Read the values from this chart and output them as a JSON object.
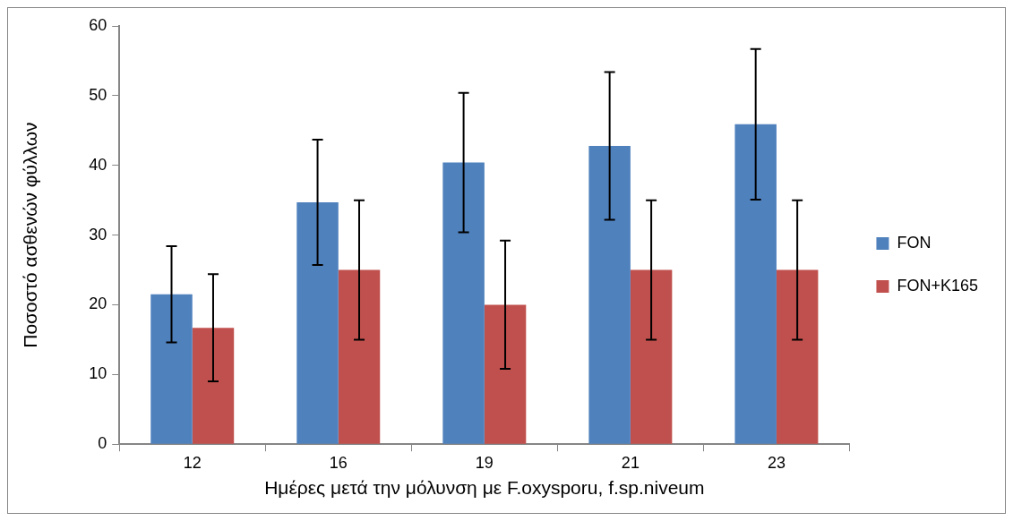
{
  "chart_data": {
    "type": "bar",
    "xlabel": "Ημέρες μετά την μόλυνση με F.oxysporu, f.sp.niveum",
    "ylabel": "Ποσοστό ασθενών φύλλων",
    "categories": [
      "12",
      "16",
      "19",
      "21",
      "23"
    ],
    "series": [
      {
        "name": "FON",
        "color": "#4f81bd",
        "values": [
          21.5,
          34.7,
          40.4,
          42.8,
          45.9
        ],
        "errors": [
          6.9,
          9.0,
          10.0,
          10.6,
          10.8
        ]
      },
      {
        "name": "FON+K165",
        "color": "#c0504d",
        "values": [
          16.7,
          25,
          20,
          25,
          25
        ],
        "errors": [
          7.7,
          10,
          9.2,
          10,
          10
        ]
      }
    ],
    "ylim": [
      0,
      60
    ],
    "yticks": [
      0,
      10,
      20,
      30,
      40,
      50,
      60
    ],
    "legend": "right"
  }
}
